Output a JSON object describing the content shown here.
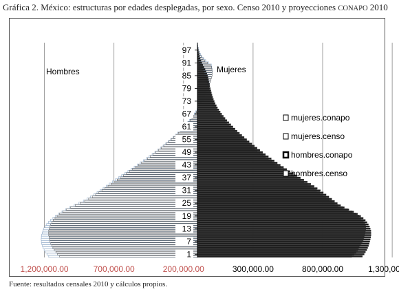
{
  "title_prefix": "Gráfica 2. México: estructuras por edades desplegadas, por sexo. Censo 2010 y proyecciones",
  "title_suffix_sc": "CONAPO",
  "title_year": "2010",
  "source": "Fuente: resultados censales 2010 y cálculos propios.",
  "chart_data": {
    "type": "bar",
    "orientation": "horizontal",
    "annotations": [
      "Hombres",
      "Mujeres"
    ],
    "x_ticks": [
      {
        "value": -1200000,
        "label": "1,200,000.00",
        "color": "#c0504d"
      },
      {
        "value": -700000,
        "label": "700,000.00",
        "color": "#c0504d"
      },
      {
        "value": -200000,
        "label": "200,000.00",
        "color": "#c0504d"
      },
      {
        "value": 300000,
        "label": "300,000.00",
        "color": "#000000"
      },
      {
        "value": 800000,
        "label": "800,000.00",
        "color": "#000000"
      },
      {
        "value": 1300000,
        "label": "1,300,000.00",
        "color": "#000000"
      }
    ],
    "xlim": [
      -1450000,
      1250000
    ],
    "zero_line_value": -100000,
    "y_ticks": [
      "1",
      "7",
      "13",
      "19",
      "25",
      "31",
      "37",
      "43",
      "49",
      "55",
      "61",
      "67",
      "73",
      "79",
      "85",
      "91",
      "97"
    ],
    "ages": [
      0,
      1,
      2,
      3,
      4,
      5,
      6,
      7,
      8,
      9,
      10,
      11,
      12,
      13,
      14,
      15,
      16,
      17,
      18,
      19,
      20,
      21,
      22,
      23,
      24,
      25,
      26,
      27,
      28,
      29,
      30,
      31,
      32,
      33,
      34,
      35,
      36,
      37,
      38,
      39,
      40,
      41,
      42,
      43,
      44,
      45,
      46,
      47,
      48,
      49,
      50,
      51,
      52,
      53,
      54,
      55,
      56,
      57,
      58,
      59,
      60,
      61,
      62,
      63,
      64,
      65,
      66,
      67,
      68,
      69,
      70,
      71,
      72,
      73,
      74,
      75,
      76,
      77,
      78,
      79,
      80,
      81,
      82,
      83,
      84,
      85,
      86,
      87,
      88,
      89,
      90,
      91,
      92,
      93,
      94,
      95,
      96,
      97,
      98,
      99,
      100
    ],
    "legend_position": "right",
    "colors": {
      "female_fill": "#1f1f1f",
      "male_fill": "#ffffff",
      "male_outer_stroke": "#8ea9c7",
      "bar_stroke": "#222222"
    },
    "series": [
      {
        "name": "mujeres.conapo",
        "legend_style": "outline-thin",
        "values": [
          1086000,
          1099000,
          1108000,
          1117000,
          1124000,
          1130000,
          1135000,
          1139000,
          1143000,
          1146000,
          1148000,
          1148000,
          1147000,
          1143000,
          1137000,
          1129000,
          1119000,
          1107000,
          1092000,
          1074000,
          1051000,
          1023000,
          989000,
          956000,
          929000,
          906000,
          886000,
          866000,
          845000,
          825000,
          805000,
          784000,
          762000,
          739000,
          715000,
          690000,
          665000,
          640000,
          615000,
          590000,
          566000,
          542000,
          519000,
          496000,
          474000,
          452000,
          431000,
          410000,
          389000,
          369000,
          349000,
          329000,
          310000,
          291000,
          272000,
          254000,
          236000,
          219000,
          202000,
          186000,
          170000,
          155000,
          140000,
          126000,
          112000,
          99000,
          87000,
          75000,
          64000,
          54000,
          44000,
          36000,
          28000,
          21000,
          15000,
          10000,
          5000,
          1000,
          -3000,
          -7000,
          -11000,
          -14000,
          -17000,
          -20000,
          -23000,
          -27000,
          -32000,
          -38000,
          -45000,
          -53000,
          -61000,
          -68000,
          -74000,
          -80000,
          -85000,
          -89000,
          -92000,
          -95000,
          -97000,
          -98000,
          -99000
        ]
      },
      {
        "name": "mujeres.censo",
        "legend_style": "outline-thin",
        "values": [
          1008000,
          1025000,
          1041000,
          1052000,
          1060000,
          1068000,
          1077000,
          1085000,
          1092000,
          1097000,
          1100000,
          1104000,
          1107000,
          1110000,
          1109000,
          1105000,
          1098000,
          1089000,
          1075000,
          1059000,
          1038000,
          1011000,
          979000,
          943000,
          910000,
          885000,
          864000,
          843000,
          822000,
          801000,
          779000,
          757000,
          735000,
          712000,
          689000,
          665000,
          641000,
          617000,
          592000,
          568000,
          544000,
          520000,
          497000,
          475000,
          453000,
          432000,
          410000,
          389000,
          369000,
          349000,
          329000,
          310000,
          291000,
          273000,
          255000,
          237000,
          220000,
          203000,
          187000,
          171000,
          155000,
          140000,
          125000,
          111000,
          98000,
          86000,
          74000,
          63000,
          53000,
          43000,
          34000,
          26000,
          19000,
          12000,
          6000,
          1000,
          -4000,
          -8000,
          -13000,
          -17000,
          -21000,
          -25000,
          -29000,
          -33000,
          -38000,
          -44000,
          -51000,
          -59000,
          -67000,
          -75000,
          -82000,
          -88000,
          -93000,
          -96000,
          -98000,
          -99000,
          -99500,
          -99700,
          -99800,
          -99900,
          -100000
        ]
      },
      {
        "name": "hombres.conapo",
        "legend_style": "outline-thick",
        "values": [
          -1169000,
          -1182000,
          -1193000,
          -1202000,
          -1209000,
          -1215000,
          -1219000,
          -1222000,
          -1223000,
          -1222000,
          -1220000,
          -1216000,
          -1211000,
          -1204000,
          -1195000,
          -1184000,
          -1171000,
          -1156000,
          -1139000,
          -1120000,
          -1098000,
          -1074000,
          -1047000,
          -1018000,
          -986000,
          -952000,
          -920000,
          -893000,
          -868000,
          -845000,
          -822000,
          -800000,
          -778000,
          -756000,
          -734000,
          -712000,
          -690000,
          -667000,
          -645000,
          -622000,
          -600000,
          -577000,
          -555000,
          -533000,
          -511000,
          -489000,
          -468000,
          -447000,
          -426000,
          -406000,
          -386000,
          -366000,
          -347000,
          -328000,
          -310000,
          -292000,
          -275000,
          -258000,
          -242000,
          -226000,
          -211000,
          -197000,
          -183000,
          -170000,
          -157000,
          -145000,
          -134000,
          -123000,
          -113000,
          -103000,
          -93000,
          -84000,
          -75000,
          -66000,
          -58000,
          -51000,
          -44000,
          -37000,
          -31000,
          -25000,
          -19000,
          -14000,
          -9000,
          -5000,
          -1000,
          3000,
          5000,
          6000,
          5000,
          3000,
          0,
          -20000,
          -40000,
          -55000,
          -68000,
          -78000,
          -85000,
          -90000,
          -94000,
          -97000,
          -100000
        ]
      },
      {
        "name": "hombres.censo",
        "legend_style": "outline-thin",
        "values": [
          -1090000,
          -1105000,
          -1118000,
          -1129000,
          -1139000,
          -1147000,
          -1154000,
          -1160000,
          -1164000,
          -1167000,
          -1169000,
          -1170000,
          -1169000,
          -1166000,
          -1161000,
          -1155000,
          -1147000,
          -1137000,
          -1124000,
          -1109000,
          -1091000,
          -1068000,
          -1041000,
          -1011000,
          -978000,
          -944000,
          -911000,
          -882000,
          -856000,
          -832000,
          -809000,
          -787000,
          -765000,
          -743000,
          -721000,
          -699000,
          -677000,
          -655000,
          -633000,
          -611000,
          -589000,
          -567000,
          -545000,
          -523000,
          -502000,
          -481000,
          -460000,
          -440000,
          -420000,
          -400000,
          -380000,
          -361000,
          -342000,
          -323000,
          -305000,
          -288000,
          -271000,
          -254000,
          -238000,
          -222000,
          -207000,
          -193000,
          -179000,
          -166000,
          -153000,
          -141000,
          -130000,
          -119000,
          -109000,
          -99000,
          -90000,
          -81000,
          -72000,
          -64000,
          -56000,
          -49000,
          -42000,
          -35000,
          -29000,
          -23000,
          -17000,
          -12000,
          -7000,
          -2000,
          2000,
          5000,
          6000,
          6000,
          4000,
          1000,
          -8000,
          -28000,
          -46000,
          -60000,
          -72000,
          -81000,
          -87000,
          -92000,
          -95000,
          -98000,
          -100000
        ]
      }
    ]
  }
}
